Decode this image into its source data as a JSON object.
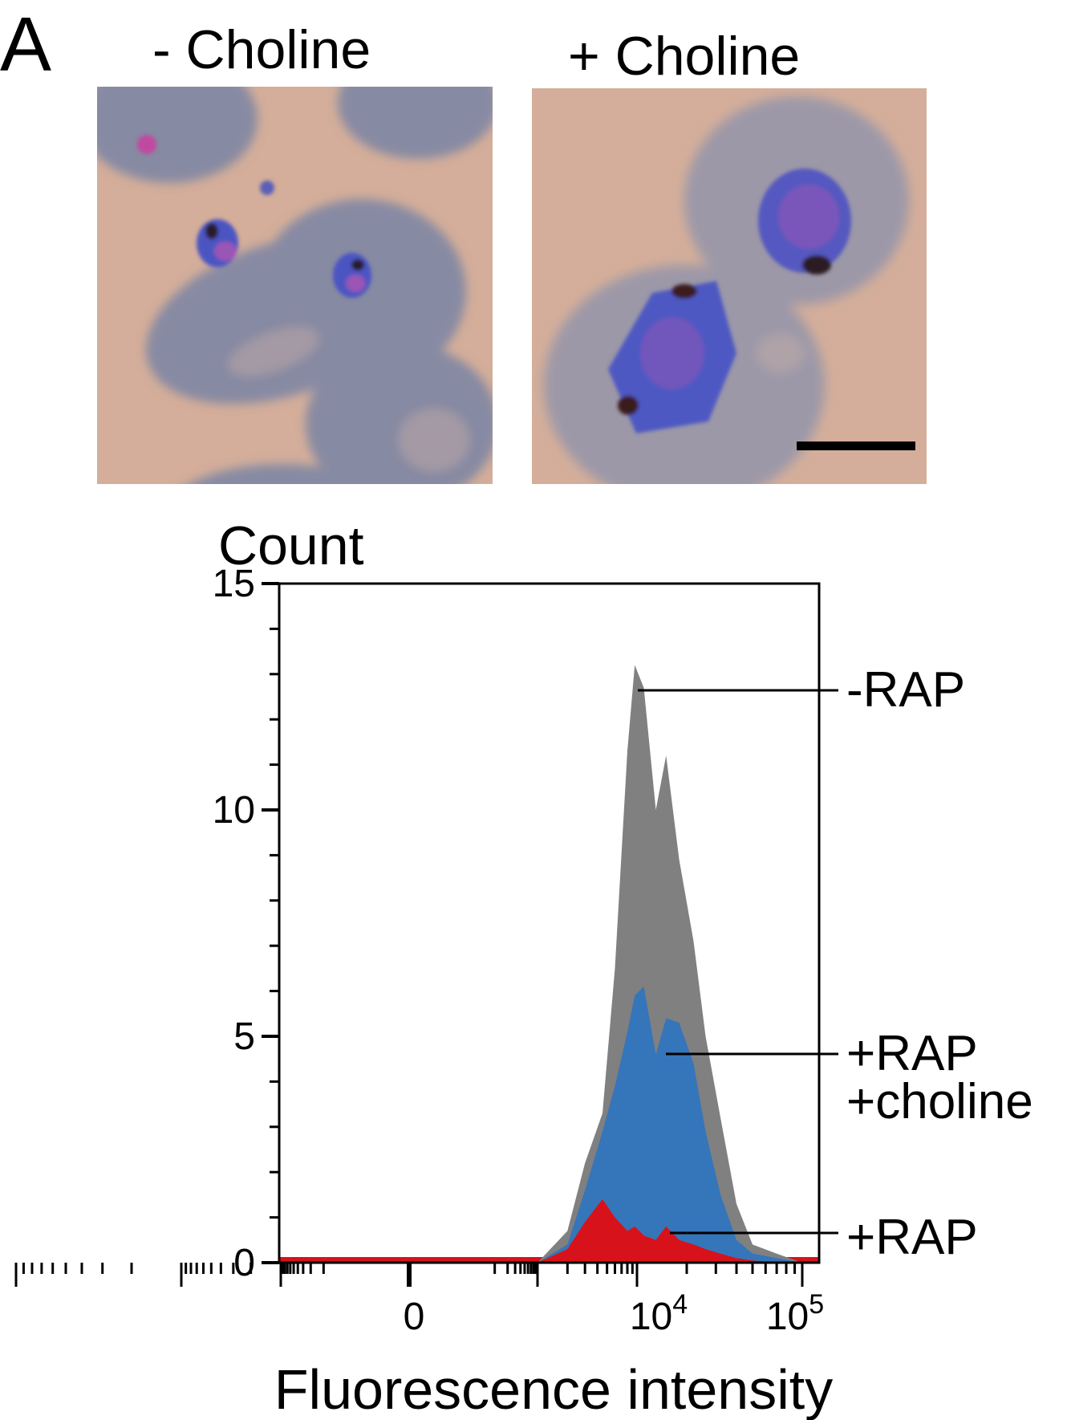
{
  "panel": {
    "letter": "A"
  },
  "micrographs": {
    "minus": {
      "label": "- Choline"
    },
    "plus": {
      "label": "+ Choline"
    }
  },
  "colors": {
    "minus_rap": "#808080",
    "plus_rap_choline": "#3575ba",
    "plus_rap": "#d8121a",
    "background_stain": "#d2ad98",
    "rbc": "#8a8da6",
    "parasite": "#4a58c0"
  },
  "chart_data": {
    "type": "area",
    "xlabel": "Fluorescence intensity",
    "ylabel": "Count",
    "x_scale": "biexponential",
    "x_tick_labels": [
      "0",
      "10^4",
      "10^5"
    ],
    "y_ticks": [
      0,
      5,
      10,
      15
    ],
    "ylim": [
      0,
      15
    ],
    "grid": false,
    "legend": "direct labels at right",
    "series": [
      {
        "name": "-RAP",
        "color": "#808080",
        "x": [
          1000,
          2000,
          3000,
          4500,
          6000,
          8000,
          9500,
          11000,
          13000,
          15000,
          18000,
          22000,
          26000,
          32000,
          40000,
          50000,
          70000,
          100000
        ],
        "y": [
          0,
          0.7,
          2.2,
          3.3,
          6.5,
          11.3,
          13.2,
          12.7,
          10.0,
          11.2,
          8.9,
          7.1,
          5.0,
          3.2,
          1.3,
          0.4,
          0.2,
          0
        ]
      },
      {
        "name": "+RAP +choline",
        "color": "#3575ba",
        "x": [
          1000,
          2000,
          3000,
          4500,
          6000,
          8000,
          9500,
          11000,
          13000,
          15000,
          18000,
          22000,
          26000,
          32000,
          40000,
          50000,
          70000,
          100000
        ],
        "y": [
          0,
          0.4,
          1.6,
          2.9,
          3.9,
          5.1,
          5.9,
          6.1,
          4.6,
          5.4,
          5.3,
          4.4,
          2.9,
          1.5,
          0.5,
          0.2,
          0.1,
          0
        ]
      },
      {
        "name": "+RAP",
        "color": "#d8121a",
        "x": [
          1000,
          2000,
          3000,
          4500,
          6000,
          8000,
          9500,
          11000,
          13000,
          15000,
          18000,
          22000,
          26000,
          32000,
          40000,
          50000,
          70000,
          100000
        ],
        "y": [
          0,
          0.3,
          0.9,
          1.4,
          1.0,
          0.7,
          0.8,
          0.6,
          0.5,
          0.8,
          0.5,
          0.4,
          0.3,
          0.2,
          0.1,
          0.05,
          0,
          0
        ]
      }
    ],
    "annotations": [
      {
        "text": "-RAP",
        "series": "-RAP"
      },
      {
        "text": "+RAP",
        "series": "+RAP +choline"
      },
      {
        "text": "+choline",
        "series": "+RAP +choline"
      },
      {
        "text": "+RAP",
        "series": "+RAP"
      }
    ]
  }
}
